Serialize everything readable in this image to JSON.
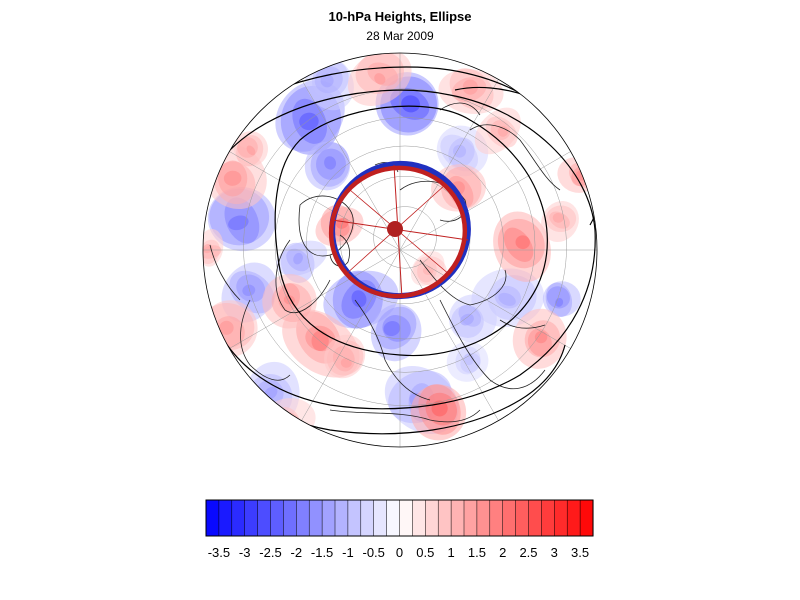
{
  "figure": {
    "title": "10-hPa Heights, Ellipse",
    "subtitle": "28 Mar 2009"
  },
  "map": {
    "projection": "north-polar-orthographic",
    "field": "10-hPa height anomaly",
    "colormap": "blue-white-red",
    "overlay": "vortex-ellipse",
    "ellipse_edge_colors": [
      "#2030c0",
      "#c02020"
    ],
    "center_marker_color": "#b02020",
    "contour_color": "#000000"
  },
  "colorbar": {
    "labels": [
      "-3.5",
      "-3",
      "-2.5",
      "-2",
      "-1.5",
      "-1",
      "-0.5",
      "0",
      "0.5",
      "1",
      "1.5",
      "2",
      "2.5",
      "3",
      "3.5"
    ],
    "min": -3.75,
    "max": 3.75,
    "step": 0.25,
    "negative_color": "#0000ff",
    "positive_color": "#ff0000",
    "neutral_color": "#ffffff"
  }
}
